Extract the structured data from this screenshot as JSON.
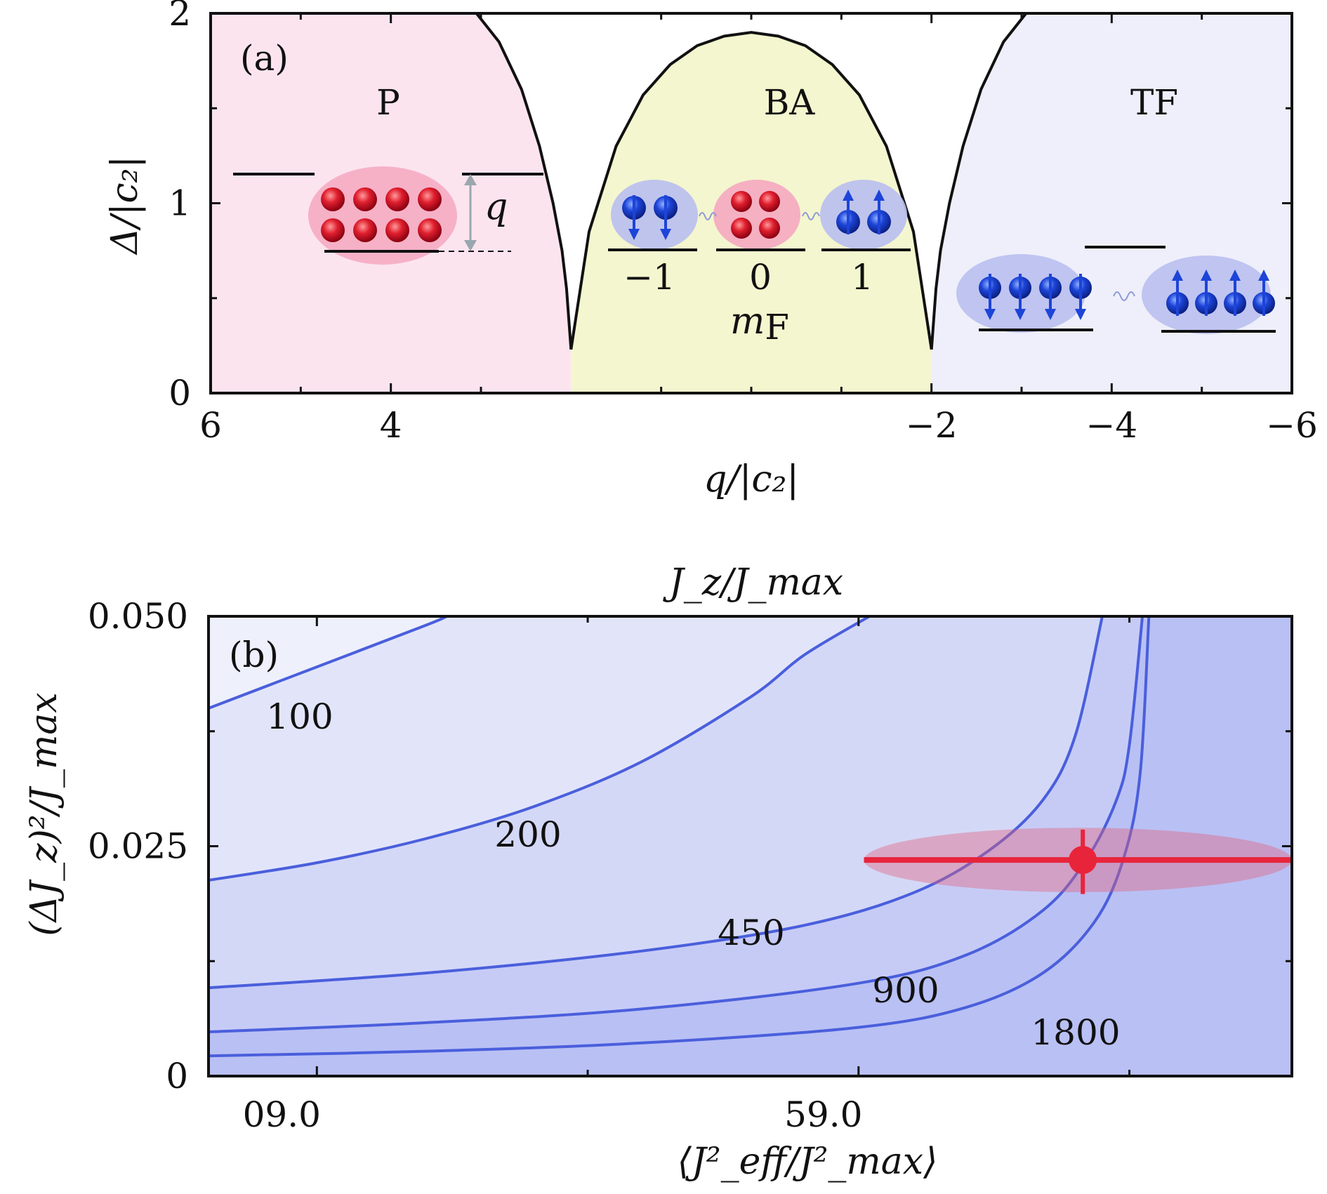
{
  "chart_data": [
    {
      "panel": "(a)",
      "type": "line",
      "xlabel": "q/|c₂|",
      "ylabel": "Δ/|c₂|",
      "xlim": [
        6,
        -6
      ],
      "ylim": [
        0,
        2
      ],
      "x_ticks": [
        6,
        4,
        -2,
        -4,
        -6
      ],
      "x_tick_labels": [
        "6",
        "4",
        "−2",
        "−4",
        "−6"
      ],
      "y_ticks": [
        0,
        1,
        2
      ],
      "y_tick_labels": [
        "0",
        "1",
        "2"
      ],
      "phases": [
        {
          "name": "P",
          "q_range": [
            6,
            2
          ],
          "color": "#fce4ef"
        },
        {
          "name": "BA",
          "q_range": [
            2,
            -2
          ],
          "color": "#f4f6cf"
        },
        {
          "name": "TF",
          "q_range": [
            -2,
            -6
          ],
          "color": "#eeeffa"
        }
      ],
      "gap_curve": {
        "left_branch": {
          "x": [
            2.0,
            2.05,
            2.1,
            2.2,
            2.35,
            2.55,
            2.8,
            3.05
          ],
          "y": [
            0.23,
            0.55,
            0.75,
            1.0,
            1.3,
            1.6,
            1.85,
            2.0
          ]
        },
        "dome": {
          "x": [
            2.0,
            1.8,
            1.5,
            1.2,
            0.9,
            0.6,
            0.3,
            0.0,
            -0.3,
            -0.6,
            -0.9,
            -1.2,
            -1.5,
            -1.8,
            -2.0
          ],
          "y": [
            0.23,
            0.85,
            1.3,
            1.57,
            1.73,
            1.83,
            1.88,
            1.9,
            1.88,
            1.83,
            1.73,
            1.57,
            1.3,
            0.85,
            0.23
          ]
        },
        "right_branch": {
          "x": [
            -2.0,
            -2.05,
            -2.1,
            -2.2,
            -2.35,
            -2.55,
            -2.8,
            -3.05
          ],
          "y": [
            0.23,
            0.55,
            0.75,
            1.0,
            1.3,
            1.6,
            1.85,
            2.0
          ]
        }
      },
      "annotations": {
        "q_arrow_label": "q",
        "mf_values": [
          "−1",
          "0",
          "1"
        ],
        "mf_axis_label": "m",
        "mf_axis_sub": "F"
      }
    },
    {
      "panel": "(b)",
      "type": "line",
      "top_xlabel": "J_z/J_max",
      "xlabel": "⟨J²_eff/J²_max⟩",
      "ylabel": "(ΔJ_z)²/J_max",
      "x_tick_labels": [
        "09.0",
        "59.0"
      ],
      "x_tick_values": [
        0.9,
        0.95
      ],
      "xlim": [
        0.89,
        0.99
      ],
      "ylim": [
        0,
        0.05
      ],
      "y_ticks": [
        0,
        0.025,
        0.05
      ],
      "y_tick_labels": [
        "0",
        "0.025",
        "0.050"
      ],
      "series": [
        {
          "name": "100",
          "x": [
            0.89,
            0.9,
            0.91,
            0.912
          ],
          "y": [
            0.04,
            0.0445,
            0.049,
            0.05
          ]
        },
        {
          "name": "200",
          "x": [
            0.89,
            0.9,
            0.91,
            0.92,
            0.93,
            0.94,
            0.945,
            0.951
          ],
          "y": [
            0.0213,
            0.0232,
            0.0258,
            0.0293,
            0.0342,
            0.0412,
            0.0458,
            0.05
          ]
        },
        {
          "name": "450",
          "x": [
            0.89,
            0.91,
            0.93,
            0.945,
            0.955,
            0.962,
            0.967,
            0.97,
            0.9725
          ],
          "y": [
            0.0096,
            0.0112,
            0.0136,
            0.0164,
            0.0199,
            0.0245,
            0.03,
            0.037,
            0.05
          ]
        },
        {
          "name": "900",
          "x": [
            0.89,
            0.91,
            0.93,
            0.95,
            0.96,
            0.967,
            0.971,
            0.9738,
            0.975,
            0.9762
          ],
          "y": [
            0.0048,
            0.0058,
            0.0073,
            0.0101,
            0.0132,
            0.018,
            0.0235,
            0.03,
            0.036,
            0.05
          ]
        },
        {
          "name": "1800",
          "x": [
            0.89,
            0.91,
            0.93,
            0.95,
            0.96,
            0.967,
            0.9718,
            0.9745,
            0.976,
            0.9768
          ],
          "y": [
            0.0022,
            0.0027,
            0.0036,
            0.0053,
            0.0075,
            0.0112,
            0.0168,
            0.0238,
            0.033,
            0.05
          ]
        }
      ],
      "data_point": {
        "x": 0.9707,
        "y": 0.0235,
        "x_err": [
          0.9505,
          0.99
        ],
        "y_err": [
          0.0198,
          0.0268
        ]
      }
    }
  ]
}
